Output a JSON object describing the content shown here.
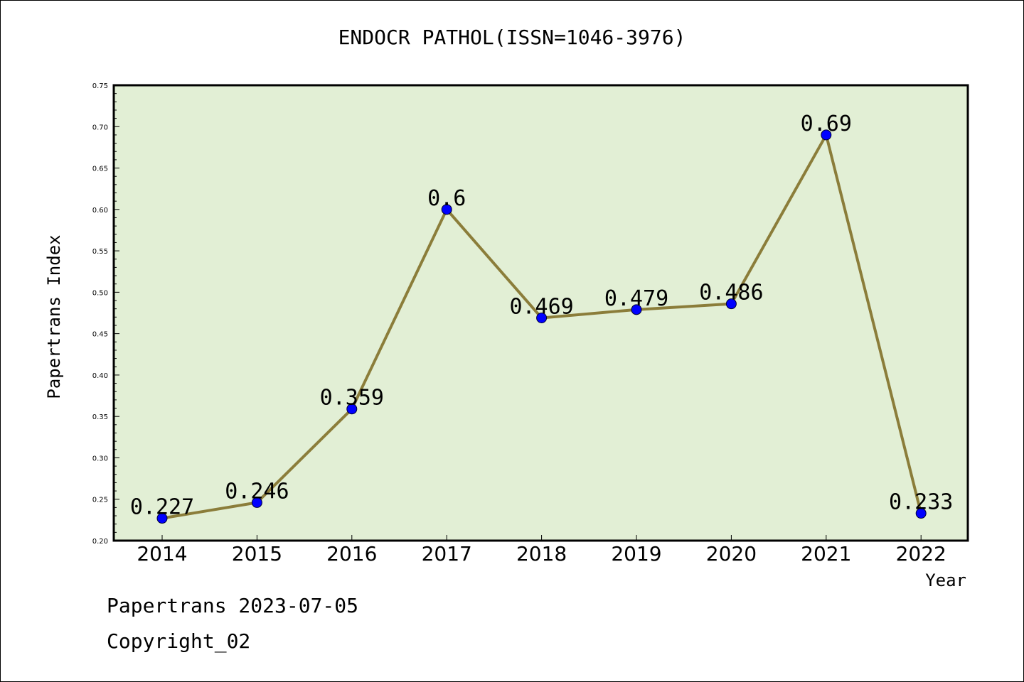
{
  "chart_data": {
    "type": "line",
    "title": "ENDOCR PATHOL(ISSN=1046-3976)",
    "xlabel": "Year",
    "ylabel": "Papertrans Index",
    "categories": [
      "2014",
      "2015",
      "2016",
      "2017",
      "2018",
      "2019",
      "2020",
      "2021",
      "2022"
    ],
    "series": [
      {
        "values": [
          0.227,
          0.246,
          0.359,
          0.6,
          0.469,
          0.479,
          0.486,
          0.69,
          0.233
        ],
        "labels": [
          "0.227",
          "0.246",
          "0.359",
          "0.6",
          "0.469",
          "0.479",
          "0.486",
          "0.69",
          "0.233"
        ]
      }
    ],
    "ylim": [
      0.2,
      0.75
    ],
    "yticks": [
      "0.20",
      "0.25",
      "0.30",
      "0.35",
      "0.40",
      "0.45",
      "0.50",
      "0.55",
      "0.60",
      "0.65",
      "0.70",
      "0.75"
    ],
    "grid": false,
    "colors": {
      "plot_background": "#e2efd5",
      "line": "#8b7d3a",
      "marker": "#0000ff"
    }
  },
  "footer": {
    "line1": "Papertrans 2023-07-05",
    "line2": "Copyright_02"
  }
}
